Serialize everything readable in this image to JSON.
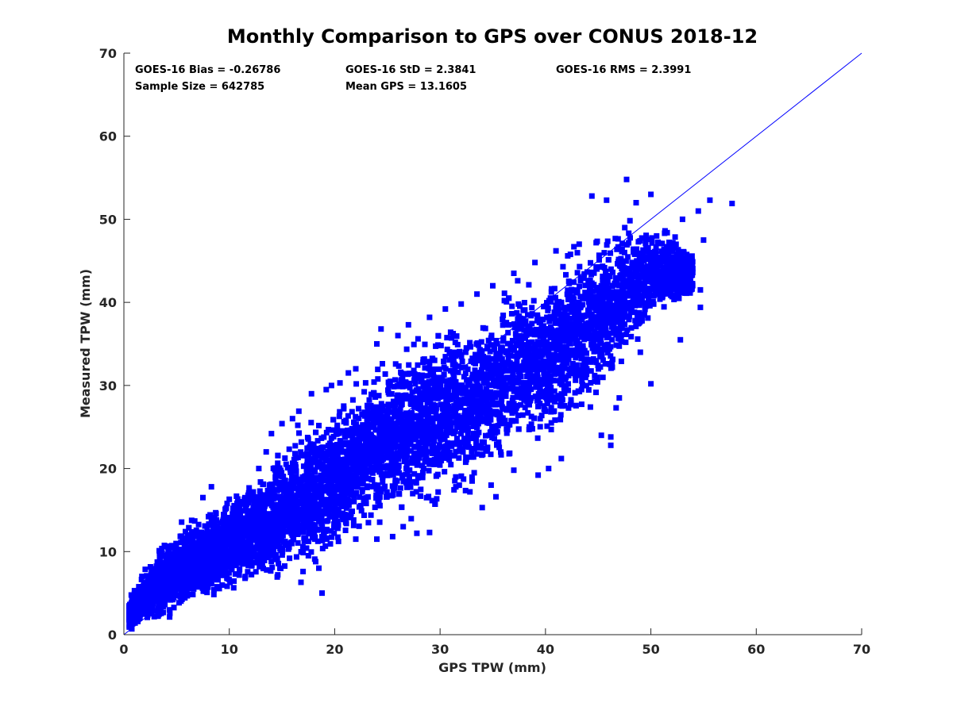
{
  "chart_data": {
    "type": "scatter",
    "title": "Monthly Comparison to GPS over CONUS 2018-12",
    "xlabel": "GPS TPW (mm)",
    "ylabel": "Measured TPW (mm)",
    "xlim": [
      0,
      70
    ],
    "ylim": [
      0,
      70
    ],
    "xticks": [
      0,
      10,
      20,
      30,
      40,
      50,
      60,
      70
    ],
    "yticks": [
      0,
      10,
      20,
      30,
      40,
      50,
      60,
      70
    ],
    "grid": false,
    "marker_color": "#0000ff",
    "reference_line": {
      "from": [
        0,
        0
      ],
      "to": [
        70,
        70
      ],
      "color": "#0000ff"
    },
    "stats": {
      "bias": "GOES-16 Bias = -0.26786",
      "std": "GOES-16 StD = 2.3841",
      "rms": "GOES-16 RMS = 2.3991",
      "sample": "Sample Size = 642785",
      "mean": "Mean GPS = 13.1605"
    },
    "band": [
      {
        "x": 0.5,
        "lo": 0.3,
        "hi": 4.5
      },
      {
        "x": 2,
        "lo": 1,
        "hi": 8
      },
      {
        "x": 4,
        "lo": 1.5,
        "hi": 12
      },
      {
        "x": 6,
        "lo": 2.5,
        "hi": 14
      },
      {
        "x": 8,
        "lo": 3.5,
        "hi": 15.5
      },
      {
        "x": 10,
        "lo": 4.5,
        "hi": 17
      },
      {
        "x": 12,
        "lo": 5.5,
        "hi": 19
      },
      {
        "x": 14,
        "lo": 6.5,
        "hi": 21.5
      },
      {
        "x": 16,
        "lo": 7.5,
        "hi": 24
      },
      {
        "x": 18,
        "lo": 8.5,
        "hi": 26.5
      },
      {
        "x": 20,
        "lo": 9.5,
        "hi": 28
      },
      {
        "x": 22,
        "lo": 11.5,
        "hi": 30
      },
      {
        "x": 24,
        "lo": 12.5,
        "hi": 33
      },
      {
        "x": 26,
        "lo": 13,
        "hi": 35
      },
      {
        "x": 28,
        "lo": 14,
        "hi": 37
      },
      {
        "x": 30,
        "lo": 15,
        "hi": 38
      },
      {
        "x": 32,
        "lo": 16,
        "hi": 39
      },
      {
        "x": 34,
        "lo": 17,
        "hi": 40
      },
      {
        "x": 36,
        "lo": 19,
        "hi": 42
      },
      {
        "x": 38,
        "lo": 21,
        "hi": 44
      },
      {
        "x": 40,
        "lo": 22,
        "hi": 45.5
      },
      {
        "x": 42,
        "lo": 24,
        "hi": 47
      },
      {
        "x": 44,
        "lo": 26,
        "hi": 48.5
      },
      {
        "x": 46,
        "lo": 29,
        "hi": 49.5
      },
      {
        "x": 48,
        "lo": 33,
        "hi": 50.5
      },
      {
        "x": 50,
        "lo": 37,
        "hi": 50.5
      },
      {
        "x": 52,
        "lo": 39,
        "hi": 49
      },
      {
        "x": 54,
        "lo": 40,
        "hi": 46
      }
    ],
    "outliers": [
      [
        47.7,
        54.8
      ],
      [
        50,
        53
      ],
      [
        44.4,
        52.8
      ],
      [
        45.8,
        52.3
      ],
      [
        48.6,
        52
      ],
      [
        55.6,
        52.3
      ],
      [
        57.7,
        51.9
      ],
      [
        54.5,
        51
      ],
      [
        53,
        50
      ],
      [
        55,
        47.5
      ],
      [
        54.7,
        41.5
      ],
      [
        54.7,
        39.4
      ],
      [
        52.8,
        35.5
      ],
      [
        50,
        30.2
      ],
      [
        49,
        34
      ],
      [
        47.2,
        32.9
      ],
      [
        46.2,
        22.8
      ],
      [
        46.2,
        23.8
      ],
      [
        45.3,
        24
      ],
      [
        47,
        28.5
      ],
      [
        46.7,
        27.3
      ],
      [
        41.5,
        21.2
      ],
      [
        40.3,
        20
      ],
      [
        39.3,
        19.2
      ],
      [
        37,
        19.8
      ],
      [
        35.3,
        16.6
      ],
      [
        34,
        15.3
      ],
      [
        31.5,
        17.8
      ],
      [
        29,
        12.3
      ],
      [
        27.8,
        12.2
      ],
      [
        26.5,
        13
      ],
      [
        25.5,
        11.8
      ],
      [
        24,
        11.5
      ],
      [
        22,
        11.5
      ],
      [
        21.8,
        13.8
      ],
      [
        19,
        12.2
      ],
      [
        18.8,
        11.8
      ],
      [
        18.5,
        8
      ],
      [
        17,
        7.6
      ],
      [
        14.6,
        7.2
      ],
      [
        14.8,
        8
      ],
      [
        16.8,
        6.3
      ],
      [
        18.8,
        5
      ],
      [
        18.2,
        8.8
      ],
      [
        17.5,
        9.5
      ],
      [
        8.3,
        17.8
      ],
      [
        10,
        16.3
      ],
      [
        12.8,
        20
      ],
      [
        13.5,
        22
      ],
      [
        14,
        24.2
      ],
      [
        15,
        25.4
      ],
      [
        16,
        26
      ],
      [
        16.6,
        26.9
      ],
      [
        17.8,
        29
      ],
      [
        19.2,
        29.5
      ],
      [
        20.5,
        30.3
      ],
      [
        21.3,
        31.5
      ],
      [
        22,
        32
      ],
      [
        24,
        35
      ],
      [
        24.4,
        36.8
      ],
      [
        26,
        36
      ],
      [
        27,
        37.3
      ],
      [
        29,
        38.2
      ],
      [
        30.5,
        39.2
      ],
      [
        32,
        39.8
      ],
      [
        33.5,
        41
      ],
      [
        35,
        42
      ],
      [
        37,
        43.5
      ],
      [
        39,
        44.8
      ],
      [
        41,
        46.2
      ],
      [
        42.7,
        46.7
      ],
      [
        43.2,
        47
      ],
      [
        16.5,
        25.2
      ],
      [
        19.7,
        30
      ],
      [
        7.5,
        16.5
      ]
    ],
    "seed": 12018
  }
}
